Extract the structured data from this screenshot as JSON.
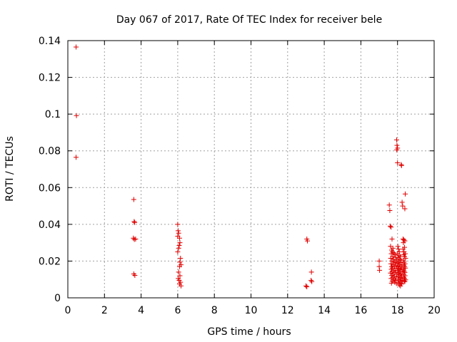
{
  "chart_data": {
    "type": "scatter",
    "title": "Day 067 of 2017, Rate Of TEC Index for receiver bele",
    "xlabel": "GPS time / hours",
    "ylabel": "ROTI / TECUs",
    "xlim": [
      0,
      20
    ],
    "ylim": [
      0,
      0.14
    ],
    "x_ticks": [
      0,
      2,
      4,
      6,
      8,
      10,
      12,
      14,
      16,
      18,
      20
    ],
    "y_ticks": [
      0,
      0.02,
      0.04,
      0.06,
      0.08,
      0.1,
      0.12,
      0.14
    ],
    "x_tick_labels": [
      "0",
      "2",
      "4",
      "6",
      "8",
      "10",
      "12",
      "14",
      "16",
      "18",
      "20"
    ],
    "y_tick_labels": [
      "0",
      "0.02",
      "0.04",
      "0.06",
      "0.08",
      "0.1",
      "0.12",
      "0.14"
    ],
    "grid": true,
    "marker": "plus",
    "color": "#e00000",
    "points": [
      [
        0.45,
        0.1365
      ],
      [
        0.47,
        0.0992
      ],
      [
        0.45,
        0.0765
      ],
      [
        3.6,
        0.0535
      ],
      [
        3.62,
        0.0415
      ],
      [
        3.65,
        0.041
      ],
      [
        3.58,
        0.0325
      ],
      [
        3.63,
        0.0318
      ],
      [
        3.7,
        0.032
      ],
      [
        3.6,
        0.013
      ],
      [
        3.66,
        0.0122
      ],
      [
        6.0,
        0.04
      ],
      [
        6.02,
        0.0365
      ],
      [
        6.05,
        0.0352
      ],
      [
        6.0,
        0.0335
      ],
      [
        6.1,
        0.0325
      ],
      [
        6.12,
        0.03
      ],
      [
        6.08,
        0.0285
      ],
      [
        6.05,
        0.027
      ],
      [
        6.0,
        0.025
      ],
      [
        6.15,
        0.0215
      ],
      [
        6.12,
        0.0195
      ],
      [
        6.18,
        0.018
      ],
      [
        6.1,
        0.017
      ],
      [
        6.05,
        0.014
      ],
      [
        6.12,
        0.012
      ],
      [
        6.03,
        0.0105
      ],
      [
        6.08,
        0.0095
      ],
      [
        6.15,
        0.0085
      ],
      [
        6.1,
        0.0075
      ],
      [
        6.18,
        0.0065
      ],
      [
        13.05,
        0.032
      ],
      [
        13.08,
        0.031
      ],
      [
        13.0,
        0.0065
      ],
      [
        13.05,
        0.006
      ],
      [
        13.3,
        0.014
      ],
      [
        13.28,
        0.0095
      ],
      [
        13.32,
        0.0088
      ],
      [
        17.0,
        0.02
      ],
      [
        17.0,
        0.017
      ],
      [
        17.02,
        0.015
      ],
      [
        17.55,
        0.0505
      ],
      [
        17.58,
        0.0475
      ],
      [
        17.6,
        0.039
      ],
      [
        17.65,
        0.0385
      ],
      [
        17.7,
        0.032
      ],
      [
        17.62,
        0.028
      ],
      [
        17.75,
        0.027
      ],
      [
        17.68,
        0.026
      ],
      [
        17.72,
        0.025
      ],
      [
        17.8,
        0.0245
      ],
      [
        17.66,
        0.024
      ],
      [
        17.85,
        0.0235
      ],
      [
        17.74,
        0.0225
      ],
      [
        17.9,
        0.022
      ],
      [
        17.63,
        0.0215
      ],
      [
        17.78,
        0.021
      ],
      [
        17.95,
        0.0205
      ],
      [
        17.7,
        0.02
      ],
      [
        17.82,
        0.0195
      ],
      [
        17.88,
        0.019
      ],
      [
        17.64,
        0.0185
      ],
      [
        17.76,
        0.018
      ],
      [
        17.93,
        0.0175
      ],
      [
        17.68,
        0.017
      ],
      [
        17.84,
        0.0168
      ],
      [
        17.72,
        0.0162
      ],
      [
        17.98,
        0.016
      ],
      [
        17.66,
        0.0155
      ],
      [
        17.8,
        0.015
      ],
      [
        17.9,
        0.0148
      ],
      [
        17.7,
        0.0142
      ],
      [
        17.86,
        0.0138
      ],
      [
        17.62,
        0.0135
      ],
      [
        17.77,
        0.013
      ],
      [
        17.96,
        0.0128
      ],
      [
        17.69,
        0.0122
      ],
      [
        17.83,
        0.0118
      ],
      [
        17.74,
        0.0112
      ],
      [
        17.92,
        0.0108
      ],
      [
        17.65,
        0.0105
      ],
      [
        17.8,
        0.01
      ],
      [
        17.88,
        0.0095
      ],
      [
        17.71,
        0.009
      ],
      [
        17.85,
        0.0085
      ],
      [
        17.67,
        0.008
      ],
      [
        17.94,
        0.0078
      ],
      [
        17.95,
        0.086
      ],
      [
        17.97,
        0.083
      ],
      [
        18.0,
        0.0815
      ],
      [
        17.96,
        0.0805
      ],
      [
        18.0,
        0.0735
      ],
      [
        18.02,
        0.028
      ],
      [
        18.05,
        0.0265
      ],
      [
        18.1,
        0.025
      ],
      [
        18.0,
        0.024
      ],
      [
        18.08,
        0.023
      ],
      [
        18.15,
        0.0225
      ],
      [
        18.03,
        0.0218
      ],
      [
        18.12,
        0.021
      ],
      [
        18.2,
        0.0205
      ],
      [
        18.06,
        0.0198
      ],
      [
        18.18,
        0.0192
      ],
      [
        18.01,
        0.0188
      ],
      [
        18.1,
        0.0182
      ],
      [
        18.25,
        0.0178
      ],
      [
        18.04,
        0.0172
      ],
      [
        18.14,
        0.0168
      ],
      [
        18.22,
        0.0162
      ],
      [
        18.07,
        0.0158
      ],
      [
        18.17,
        0.0152
      ],
      [
        18.02,
        0.0148
      ],
      [
        18.12,
        0.0142
      ],
      [
        18.28,
        0.014
      ],
      [
        18.05,
        0.0135
      ],
      [
        18.19,
        0.013
      ],
      [
        18.09,
        0.0125
      ],
      [
        18.24,
        0.012
      ],
      [
        18.03,
        0.0115
      ],
      [
        18.15,
        0.011
      ],
      [
        18.21,
        0.0105
      ],
      [
        18.08,
        0.01
      ],
      [
        18.26,
        0.0095
      ],
      [
        18.13,
        0.009
      ],
      [
        18.04,
        0.0085
      ],
      [
        18.18,
        0.008
      ],
      [
        18.23,
        0.0075
      ],
      [
        18.1,
        0.007
      ],
      [
        18.16,
        0.0065
      ],
      [
        18.2,
        0.0725
      ],
      [
        18.22,
        0.072
      ],
      [
        18.25,
        0.052
      ],
      [
        18.28,
        0.05
      ],
      [
        18.42,
        0.0565
      ],
      [
        18.4,
        0.0485
      ],
      [
        18.3,
        0.032
      ],
      [
        18.35,
        0.0315
      ],
      [
        18.4,
        0.031
      ],
      [
        18.32,
        0.03
      ],
      [
        18.38,
        0.0275
      ],
      [
        18.3,
        0.0265
      ],
      [
        18.36,
        0.025
      ],
      [
        18.42,
        0.024
      ],
      [
        18.33,
        0.0235
      ],
      [
        18.38,
        0.0225
      ],
      [
        18.44,
        0.0215
      ],
      [
        18.31,
        0.0205
      ],
      [
        18.37,
        0.0195
      ],
      [
        18.41,
        0.0185
      ],
      [
        18.34,
        0.0178
      ],
      [
        18.39,
        0.017
      ],
      [
        18.43,
        0.0162
      ],
      [
        18.32,
        0.0155
      ],
      [
        18.36,
        0.0145
      ],
      [
        18.4,
        0.0138
      ],
      [
        18.35,
        0.0128
      ],
      [
        18.41,
        0.012
      ],
      [
        18.33,
        0.0112
      ],
      [
        18.38,
        0.0105
      ],
      [
        18.44,
        0.0098
      ],
      [
        18.36,
        0.0092
      ],
      [
        18.4,
        0.0088
      ]
    ]
  }
}
